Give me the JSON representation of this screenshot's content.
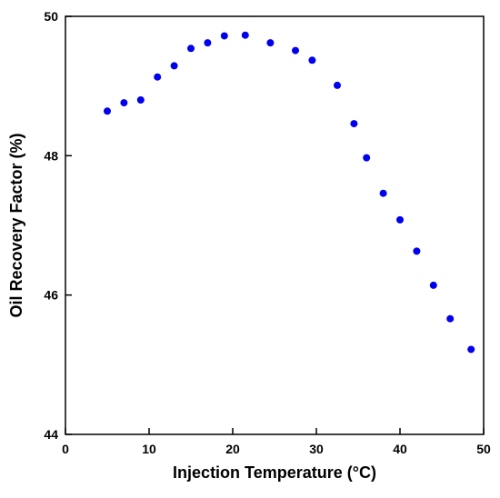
{
  "chart_data": {
    "type": "scatter",
    "title": "",
    "xlabel": "Injection Temperature (°C)",
    "ylabel": "Oil Recovery Factor (%)",
    "xlim": [
      0,
      50
    ],
    "ylim": [
      44,
      50
    ],
    "xticks": [
      0,
      10,
      20,
      30,
      40,
      50
    ],
    "yticks": [
      44,
      46,
      48,
      50
    ],
    "xtick_labels": [
      "0",
      "10",
      "20",
      "30",
      "40",
      "50"
    ],
    "ytick_labels": [
      "44",
      "46",
      "48",
      "50"
    ],
    "grid": false,
    "legend": "none",
    "marker_color": "#0000ee",
    "series": [
      {
        "x": [
          5,
          7,
          9,
          11,
          13,
          15,
          17,
          19,
          21.5,
          24.5,
          27.5,
          29.5,
          32.5,
          34.5,
          36,
          38,
          40,
          42,
          44,
          46,
          48.5
        ],
        "y": [
          48.64,
          48.76,
          48.8,
          49.13,
          49.29,
          49.54,
          49.62,
          49.72,
          49.73,
          49.62,
          49.51,
          49.37,
          49.01,
          48.46,
          47.97,
          47.46,
          47.08,
          46.63,
          46.14,
          45.66,
          45.22
        ]
      }
    ]
  }
}
